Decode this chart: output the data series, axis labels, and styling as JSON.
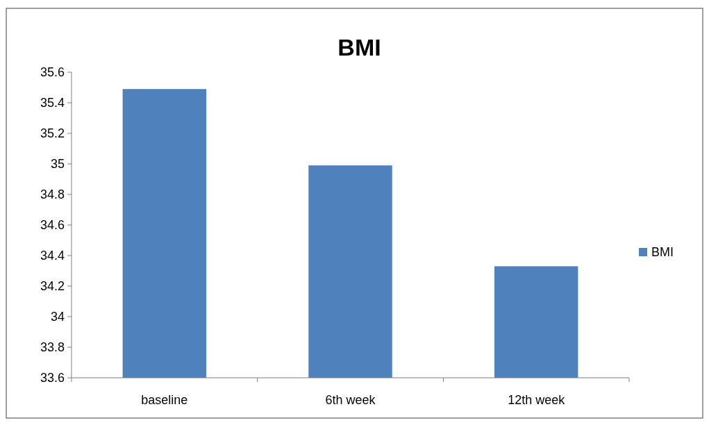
{
  "chart_data": {
    "type": "bar",
    "title": "BMI",
    "categories": [
      "baseline",
      "6th week",
      "12th week"
    ],
    "series": [
      {
        "name": "BMI",
        "color": "#4f81bd",
        "values": [
          35.49,
          34.99,
          34.33
        ]
      }
    ],
    "ylim": [
      33.6,
      35.6
    ],
    "yticks": [
      33.6,
      33.8,
      34,
      34.2,
      34.4,
      34.6,
      34.8,
      35,
      35.2,
      35.4,
      35.6
    ],
    "grid": false,
    "legend": "right"
  }
}
